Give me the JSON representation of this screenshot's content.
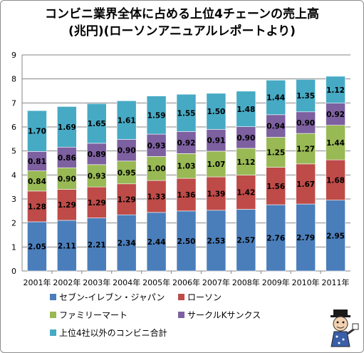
{
  "chart_data": {
    "type": "bar",
    "stacked": true,
    "title_line1": "コンビニ業界全体に占める上位4チェーンの売上高",
    "title_line2": "(兆円)(ローソンアニュアルレポートより)",
    "categories": [
      "2001年",
      "2002年",
      "2003年",
      "2004年",
      "2005年",
      "2006年",
      "2007年",
      "2008年",
      "2009年",
      "2010年",
      "2011年"
    ],
    "ylim": [
      0,
      9
    ],
    "yticks": [
      "0",
      "1",
      "2",
      "3",
      "4",
      "5",
      "6",
      "7",
      "8",
      "9"
    ],
    "grid": true,
    "legend_position": "bottom",
    "series": [
      {
        "name": "セブン-イレブン・ジャパン",
        "color": "#4a7ebb",
        "values": [
          2.05,
          2.11,
          2.21,
          2.34,
          2.44,
          2.5,
          2.53,
          2.57,
          2.76,
          2.79,
          2.95
        ]
      },
      {
        "name": "ローソン",
        "color": "#be4b48",
        "values": [
          1.28,
          1.29,
          1.29,
          1.29,
          1.33,
          1.36,
          1.39,
          1.42,
          1.56,
          1.67,
          1.68
        ]
      },
      {
        "name": "ファミリーマート",
        "color": "#98b954",
        "values": [
          0.84,
          0.9,
          0.93,
          0.95,
          1.0,
          1.03,
          1.07,
          1.12,
          1.25,
          1.27,
          1.44
        ]
      },
      {
        "name": "サークルKサンクス",
        "color": "#7d60a0",
        "values": [
          0.81,
          0.86,
          0.89,
          0.9,
          0.93,
          0.92,
          0.91,
          0.9,
          0.94,
          0.9,
          0.92
        ]
      },
      {
        "name": "上位4社以外のコンビニ合計",
        "color": "#46aac4",
        "values": [
          1.7,
          1.69,
          1.65,
          1.61,
          1.59,
          1.55,
          1.5,
          1.48,
          1.44,
          1.35,
          1.12
        ]
      }
    ],
    "value_labels": [
      [
        "2.05",
        "2.11",
        "2.21",
        "2.34",
        "2.44",
        "2.50",
        "2.53",
        "2.57",
        "2.76",
        "2.79",
        "2.95"
      ],
      [
        "1.28",
        "1.29",
        "1.29",
        "1.29",
        "1.33",
        "1.36",
        "1.39",
        "1.42",
        "1.56",
        "1.67",
        "1.68"
      ],
      [
        "0.84",
        "0.90",
        "0.93",
        "0.95",
        "1.00",
        "1.03",
        "1.07",
        "1.12",
        "1.25",
        "1.27",
        "1.44"
      ],
      [
        "0.81",
        "0.86",
        "0.89",
        "0.90",
        "0.93",
        "0.92",
        "0.91",
        "0.90",
        "0.94",
        "0.90",
        "0.92"
      ],
      [
        "1.70",
        "1.69",
        "1.65",
        "1.61",
        "1.59",
        "1.55",
        "1.50",
        "1.48",
        "1.44",
        "1.35",
        "1.12"
      ]
    ]
  },
  "mascot_icon": "cartoon-mascot-icon"
}
